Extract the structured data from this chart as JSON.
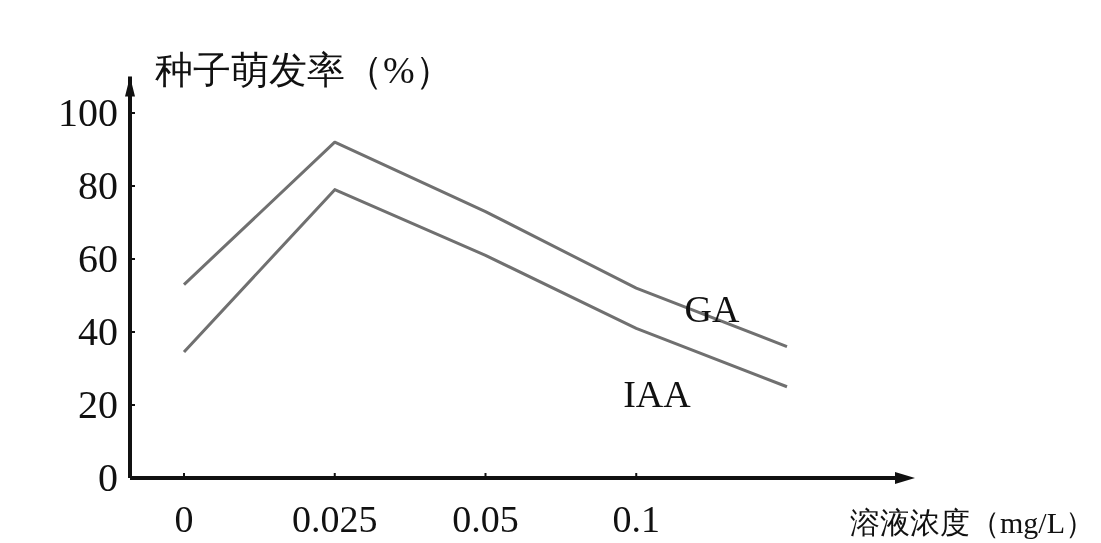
{
  "chart_data": {
    "type": "line",
    "ylabel": "种子萌发率（%）",
    "xlabel": "溶液浓度（mg/L）",
    "categories": [
      "0",
      "0.025",
      "0.05",
      "0.1",
      null
    ],
    "ylim": [
      0,
      110
    ],
    "yticks": [
      0,
      20,
      40,
      60,
      80,
      100
    ],
    "grid": false,
    "legend": false,
    "marker": "none",
    "line_style": "solid",
    "series": [
      {
        "name": "GA",
        "color": "#707070",
        "values": [
          53,
          92,
          73,
          52,
          36
        ]
      },
      {
        "name": "IAA",
        "color": "#707070",
        "values": [
          34.5,
          79,
          61,
          41,
          25
        ]
      }
    ]
  }
}
